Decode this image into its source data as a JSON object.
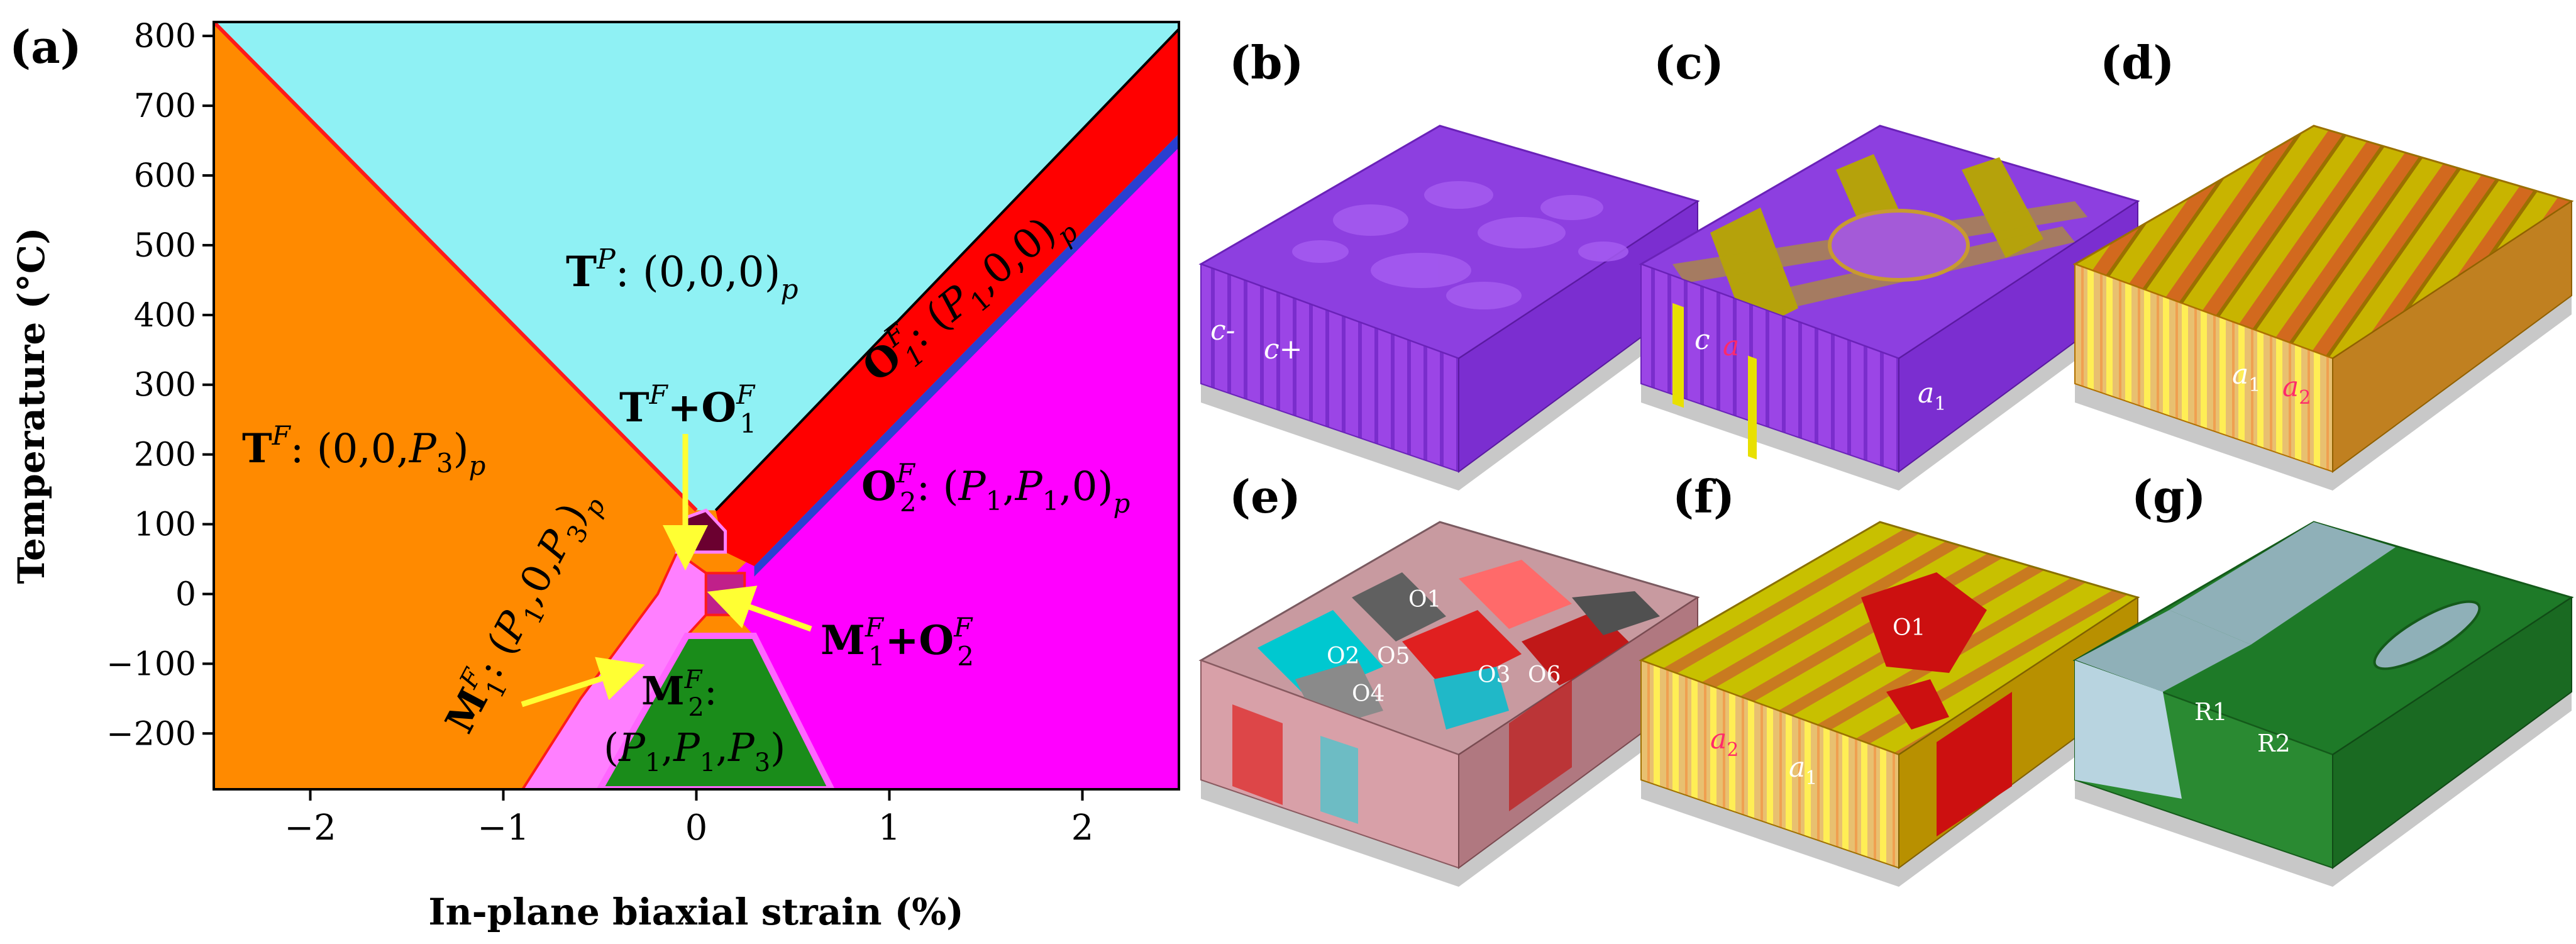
{
  "chart_data": {
    "type": "phase-diagram",
    "panel_label": "(a)",
    "xlabel": "In-plane biaxial strain (%)",
    "ylabel": "Temperature (°C)",
    "xlim": [
      -2.5,
      2.5
    ],
    "ylim": [
      -280,
      820
    ],
    "x_ticks": [
      -2,
      -1,
      0,
      1,
      2
    ],
    "x_tick_labels": [
      "−2",
      "−1",
      "0",
      "1",
      "2"
    ],
    "y_ticks": [
      -200,
      -100,
      0,
      100,
      200,
      300,
      400,
      500,
      600,
      700,
      800
    ],
    "y_tick_labels": [
      "−200",
      "−100",
      "0",
      "100",
      "200",
      "300",
      "400",
      "500",
      "600",
      "700",
      "800"
    ],
    "phase_lines": [
      {
        "name": "left boundary",
        "points": [
          [
            -2.5,
            820
          ],
          [
            0,
            120
          ]
        ]
      },
      {
        "name": "right boundary",
        "points": [
          [
            0.1,
            120
          ],
          [
            2.5,
            810
          ]
        ]
      },
      {
        "name": "O1-O2 boundary",
        "points": [
          [
            0.3,
            30
          ],
          [
            2.5,
            650
          ]
        ]
      },
      {
        "name": "M2 left",
        "points": [
          [
            -0.5,
            -280
          ],
          [
            -0.05,
            -60
          ]
        ]
      },
      {
        "name": "M2 right",
        "points": [
          [
            0.3,
            -60
          ],
          [
            0.7,
            -280
          ]
        ]
      }
    ],
    "labels": {
      "tp_main": "T",
      "tp_sup": "P",
      "tp_rest": ": (0,0,0)",
      "tp_sub": "p",
      "tf_main": "T",
      "tf_sup": "F",
      "tf_rest": ": (0,0,",
      "tf_p": "P",
      "tf_psub": "3",
      "tf_close": ")",
      "tf_sub": "p",
      "o1_main": "O",
      "o1_sup": "F",
      "o1_sub1": "1",
      "o1_rest": ": (",
      "o1_p": "P",
      "o1_psub": "1",
      "o1_close": ",0,0)",
      "o1_sub": "p",
      "o2_main": "O",
      "o2_sup": "F",
      "o2_sub1": "2",
      "o2_rest": ": (",
      "o2_p1": "P",
      "o2_p1sub": "1",
      "o2_comma": ",",
      "o2_p2": "P",
      "o2_p2sub": "1",
      "o2_close": ",0)",
      "o2_sub": "p",
      "m1_main": "M",
      "m1_sup": "F",
      "m1_sub1": "1",
      "m1_rest": ": (",
      "m1_p1": "P",
      "m1_p1sub": "1",
      "m1_mid": ",0,",
      "m1_p3": "P",
      "m1_p3sub": "3",
      "m1_close": ")",
      "m1_sub": "p",
      "m2_main": "M",
      "m2_sup": "F",
      "m2_sub1": "2",
      "m2_colon": ":",
      "m2_open": "(",
      "m2_p1": "P",
      "m2_p1sub": "1",
      "m2_c1": ",",
      "m2_p2": "P",
      "m2_p2sub": "1",
      "m2_c2": ",",
      "m2_p3": "P",
      "m2_p3sub": "3",
      "m2_close": ")",
      "tfo_t": "T",
      "tfo_tsup": "F",
      "tfo_plus": "+",
      "tfo_o": "O",
      "tfo_osup": "F",
      "tfo_osub": "1",
      "mo_m": "M",
      "mo_msup": "F",
      "mo_msub": "1",
      "mo_plus": "+",
      "mo_o": "O",
      "mo_osup": "F",
      "mo_osub": "2"
    },
    "colors": {
      "tp": "#8ff1f4",
      "tf": "#ff8a00",
      "o1": "#ff0000",
      "o2": "#ff00ff",
      "m1": "#ff7fff",
      "m2": "#1a8c1a",
      "boundary": "#ff1a1a",
      "dark": "#6b0030",
      "arrow": "#ffff33"
    }
  },
  "panels": {
    "b": {
      "label": "(b)",
      "t1": "c-",
      "t2": "c+"
    },
    "c": {
      "label": "(c)",
      "t1": "c",
      "t2": "a",
      "t3": "a",
      "t3sub": "1"
    },
    "d": {
      "label": "(d)",
      "t1": "a",
      "t1sub": "1",
      "t2": "a",
      "t2sub": "2"
    },
    "e": {
      "label": "(e)",
      "t1": "O1",
      "t2": "O2",
      "t3": "O5",
      "t4": "O4",
      "t5": "O3",
      "t6": "O6"
    },
    "f": {
      "label": "(f)",
      "t1": "O1",
      "t2": "a",
      "t2sub": "2",
      "t3": "a",
      "t3sub": "1"
    },
    "g": {
      "label": "(g)",
      "t1": "R1",
      "t2": "R2"
    }
  }
}
